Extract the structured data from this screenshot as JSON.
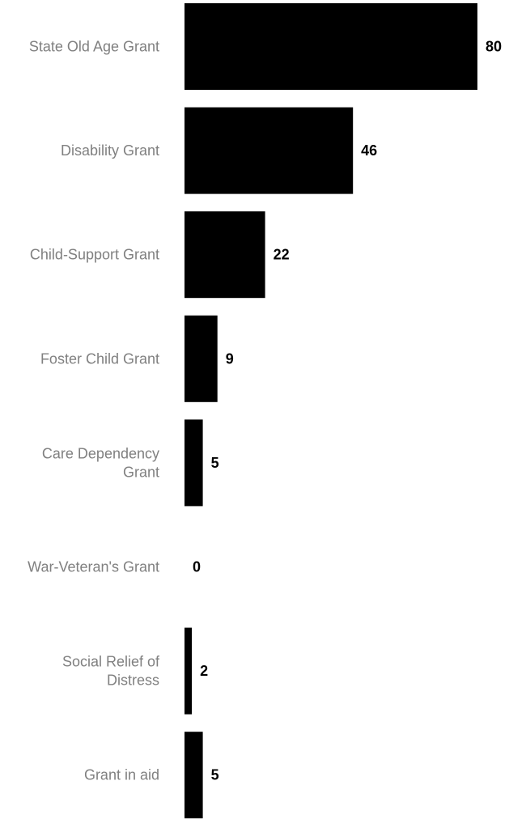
{
  "chart_data": {
    "type": "bar",
    "orientation": "horizontal",
    "categories": [
      [
        "State Old Age Grant"
      ],
      [
        "Disability Grant"
      ],
      [
        "Child-Support Grant"
      ],
      [
        "Foster Child Grant"
      ],
      [
        "Care Dependency",
        "Grant"
      ],
      [
        "War-Veteran's Grant"
      ],
      [
        "Social Relief of",
        "Distress"
      ],
      [
        "Grant in aid"
      ]
    ],
    "values": [
      80,
      46,
      22,
      9,
      5,
      0,
      2,
      5
    ],
    "data_labels": [
      "80",
      "46",
      "22",
      "9",
      "5",
      "0",
      "2",
      "5"
    ],
    "xlim": [
      0,
      80
    ],
    "grid": false,
    "legend": "none",
    "colors": {
      "bar": "#000000",
      "category_label": "#808080",
      "value_label": "#000000"
    }
  }
}
